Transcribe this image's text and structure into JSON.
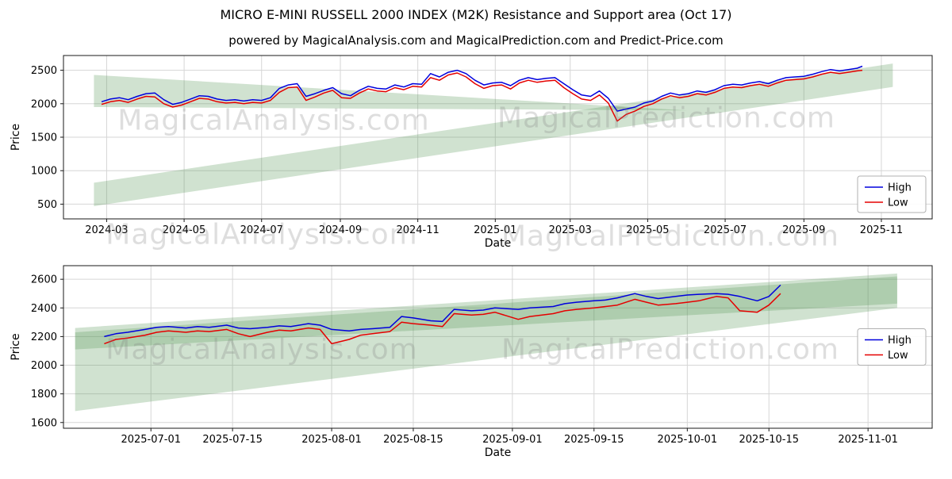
{
  "title": "MICRO E-MINI RUSSELL 2000 INDEX (M2K) Resistance and Support area (Oct 17)",
  "subtitle": "powered by MagicalAnalysis.com and MagicalPrediction.com and Predict-Price.com",
  "watermarks": [
    {
      "text": "MagicalAnalysis.com"
    },
    {
      "text": "MagicalPrediction.com"
    },
    {
      "text": "MagicalAnalysis.com"
    },
    {
      "text": "MagicalPrediction.com"
    },
    {
      "text": "MagicalAnalysis.com"
    },
    {
      "text": "MagicalPrediction.com"
    }
  ],
  "colors": {
    "high_line": "#0000dd",
    "low_line": "#e50000",
    "band_fill": "rgba(86,150,86,0.28)",
    "grid": "#d6d6d6",
    "spine": "#1a1a1a",
    "legend_border": "#b0b0b0"
  },
  "chart_data": [
    {
      "type": "line",
      "xlabel": "Date",
      "ylabel": "Price",
      "grid": true,
      "legend_loc": "lower-right",
      "xlim": [
        "2024-01-27",
        "2025-12-11"
      ],
      "ylim": [
        280,
        2720
      ],
      "yticks": [
        500,
        1000,
        1500,
        2000,
        2500
      ],
      "xticks": [
        {
          "d": "2024-03-01",
          "label": "2024-03"
        },
        {
          "d": "2024-05-01",
          "label": "2024-05"
        },
        {
          "d": "2024-07-01",
          "label": "2024-07"
        },
        {
          "d": "2024-09-01",
          "label": "2024-09"
        },
        {
          "d": "2024-11-01",
          "label": "2024-11"
        },
        {
          "d": "2025-01-01",
          "label": "2025-01"
        },
        {
          "d": "2025-03-01",
          "label": "2025-03"
        },
        {
          "d": "2025-05-01",
          "label": "2025-05"
        },
        {
          "d": "2025-07-01",
          "label": "2025-07"
        },
        {
          "d": "2025-09-01",
          "label": "2025-09"
        },
        {
          "d": "2025-11-01",
          "label": "2025-11"
        }
      ],
      "x": [
        "2024-02-26",
        "2024-03-04",
        "2024-03-11",
        "2024-03-18",
        "2024-03-25",
        "2024-04-01",
        "2024-04-08",
        "2024-04-15",
        "2024-04-22",
        "2024-04-29",
        "2024-05-06",
        "2024-05-13",
        "2024-05-20",
        "2024-05-27",
        "2024-06-03",
        "2024-06-10",
        "2024-06-17",
        "2024-06-24",
        "2024-07-01",
        "2024-07-08",
        "2024-07-15",
        "2024-07-22",
        "2024-07-29",
        "2024-08-05",
        "2024-08-12",
        "2024-08-19",
        "2024-08-26",
        "2024-09-02",
        "2024-09-09",
        "2024-09-16",
        "2024-09-23",
        "2024-09-30",
        "2024-10-07",
        "2024-10-14",
        "2024-10-21",
        "2024-10-28",
        "2024-11-04",
        "2024-11-11",
        "2024-11-18",
        "2024-11-25",
        "2024-12-02",
        "2024-12-09",
        "2024-12-16",
        "2024-12-23",
        "2024-12-30",
        "2025-01-06",
        "2025-01-13",
        "2025-01-20",
        "2025-01-27",
        "2025-02-03",
        "2025-02-10",
        "2025-02-17",
        "2025-02-24",
        "2025-03-03",
        "2025-03-10",
        "2025-03-17",
        "2025-03-24",
        "2025-03-31",
        "2025-04-07",
        "2025-04-14",
        "2025-04-21",
        "2025-04-28",
        "2025-05-05",
        "2025-05-12",
        "2025-05-19",
        "2025-05-26",
        "2025-06-02",
        "2025-06-09",
        "2025-06-16",
        "2025-06-23",
        "2025-06-30",
        "2025-07-07",
        "2025-07-14",
        "2025-07-21",
        "2025-07-28",
        "2025-08-04",
        "2025-08-11",
        "2025-08-18",
        "2025-08-25",
        "2025-09-01",
        "2025-09-08",
        "2025-09-15",
        "2025-09-22",
        "2025-09-29",
        "2025-10-06",
        "2025-10-13",
        "2025-10-17"
      ],
      "series": [
        {
          "name": "High",
          "color": "#0000dd",
          "values": [
            2030,
            2070,
            2090,
            2060,
            2110,
            2150,
            2160,
            2060,
            1990,
            2020,
            2070,
            2120,
            2110,
            2070,
            2050,
            2060,
            2040,
            2060,
            2050,
            2090,
            2230,
            2280,
            2300,
            2110,
            2150,
            2200,
            2240,
            2150,
            2120,
            2200,
            2260,
            2230,
            2220,
            2280,
            2250,
            2300,
            2290,
            2450,
            2400,
            2470,
            2500,
            2450,
            2350,
            2280,
            2310,
            2320,
            2270,
            2350,
            2390,
            2360,
            2380,
            2390,
            2300,
            2210,
            2130,
            2110,
            2190,
            2080,
            1890,
            1920,
            1950,
            2010,
            2040,
            2110,
            2160,
            2130,
            2150,
            2190,
            2170,
            2210,
            2270,
            2290,
            2280,
            2310,
            2330,
            2300,
            2350,
            2390,
            2400,
            2410,
            2440,
            2480,
            2510,
            2490,
            2510,
            2530,
            2560
          ]
        },
        {
          "name": "Low",
          "color": "#e50000",
          "values": [
            1990,
            2030,
            2050,
            2020,
            2070,
            2110,
            2100,
            2000,
            1950,
            1980,
            2030,
            2080,
            2070,
            2030,
            2010,
            2020,
            2000,
            2020,
            2010,
            2050,
            2170,
            2240,
            2250,
            2050,
            2100,
            2160,
            2200,
            2090,
            2080,
            2160,
            2220,
            2190,
            2180,
            2240,
            2210,
            2260,
            2250,
            2390,
            2350,
            2430,
            2460,
            2400,
            2300,
            2230,
            2270,
            2280,
            2220,
            2310,
            2350,
            2320,
            2340,
            2350,
            2240,
            2150,
            2070,
            2050,
            2130,
            2010,
            1740,
            1840,
            1890,
            1960,
            2000,
            2070,
            2120,
            2090,
            2110,
            2150,
            2130,
            2170,
            2230,
            2250,
            2240,
            2270,
            2290,
            2260,
            2310,
            2350,
            2360,
            2370,
            2400,
            2440,
            2470,
            2450,
            2470,
            2490,
            2500
          ]
        }
      ],
      "bands": [
        {
          "name": "support-rising-band",
          "x": [
            "2024-02-20",
            "2025-11-10"
          ],
          "bottom": [
            470,
            2250
          ],
          "top": [
            820,
            2600
          ]
        },
        {
          "name": "resistance-wedge",
          "x": [
            "2024-02-20",
            "2025-06-01"
          ],
          "bottom": [
            1950,
            1900
          ],
          "top": [
            2430,
            1900
          ]
        }
      ]
    },
    {
      "type": "line",
      "xlabel": "Date",
      "ylabel": "Price",
      "grid": true,
      "legend_loc": "center-right",
      "xlim": [
        "2025-06-16",
        "2025-11-12"
      ],
      "ylim": [
        1560,
        2695
      ],
      "yticks": [
        1600,
        1800,
        2000,
        2200,
        2400,
        2600
      ],
      "xticks": [
        {
          "d": "2025-07-01",
          "label": "2025-07-01"
        },
        {
          "d": "2025-07-15",
          "label": "2025-07-15"
        },
        {
          "d": "2025-08-01",
          "label": "2025-08-01"
        },
        {
          "d": "2025-08-15",
          "label": "2025-08-15"
        },
        {
          "d": "2025-09-01",
          "label": "2025-09-01"
        },
        {
          "d": "2025-09-15",
          "label": "2025-09-15"
        },
        {
          "d": "2025-10-01",
          "label": "2025-10-01"
        },
        {
          "d": "2025-10-15",
          "label": "2025-10-15"
        },
        {
          "d": "2025-11-01",
          "label": "2025-11-01"
        }
      ],
      "x": [
        "2025-06-23",
        "2025-06-25",
        "2025-06-27",
        "2025-06-30",
        "2025-07-02",
        "2025-07-04",
        "2025-07-07",
        "2025-07-09",
        "2025-07-11",
        "2025-07-14",
        "2025-07-16",
        "2025-07-18",
        "2025-07-21",
        "2025-07-23",
        "2025-07-25",
        "2025-07-28",
        "2025-07-30",
        "2025-08-01",
        "2025-08-04",
        "2025-08-06",
        "2025-08-08",
        "2025-08-11",
        "2025-08-13",
        "2025-08-15",
        "2025-08-18",
        "2025-08-20",
        "2025-08-22",
        "2025-08-25",
        "2025-08-27",
        "2025-08-29",
        "2025-09-02",
        "2025-09-04",
        "2025-09-08",
        "2025-09-10",
        "2025-09-12",
        "2025-09-15",
        "2025-09-17",
        "2025-09-19",
        "2025-09-22",
        "2025-09-24",
        "2025-09-26",
        "2025-09-29",
        "2025-10-01",
        "2025-10-03",
        "2025-10-06",
        "2025-10-08",
        "2025-10-10",
        "2025-10-13",
        "2025-10-15",
        "2025-10-17"
      ],
      "series": [
        {
          "name": "High",
          "color": "#0000dd",
          "values": [
            2200,
            2220,
            2230,
            2250,
            2265,
            2270,
            2260,
            2270,
            2265,
            2280,
            2260,
            2255,
            2265,
            2275,
            2270,
            2290,
            2280,
            2250,
            2240,
            2250,
            2255,
            2265,
            2340,
            2330,
            2310,
            2305,
            2390,
            2380,
            2385,
            2400,
            2390,
            2400,
            2410,
            2430,
            2440,
            2450,
            2455,
            2470,
            2500,
            2480,
            2465,
            2480,
            2490,
            2495,
            2500,
            2495,
            2480,
            2450,
            2480,
            2560
          ]
        },
        {
          "name": "Low",
          "color": "#e50000",
          "values": [
            2150,
            2180,
            2190,
            2210,
            2230,
            2240,
            2230,
            2240,
            2235,
            2250,
            2220,
            2200,
            2230,
            2245,
            2240,
            2260,
            2250,
            2150,
            2180,
            2210,
            2220,
            2235,
            2300,
            2290,
            2280,
            2270,
            2360,
            2350,
            2355,
            2370,
            2320,
            2340,
            2360,
            2380,
            2390,
            2400,
            2410,
            2420,
            2460,
            2440,
            2420,
            2430,
            2440,
            2450,
            2480,
            2470,
            2380,
            2370,
            2420,
            2500
          ]
        }
      ],
      "bands": [
        {
          "name": "support-wide-band",
          "x": [
            "2025-06-18",
            "2025-11-06"
          ],
          "bottom": [
            1680,
            2400
          ],
          "top": [
            2230,
            2620
          ]
        },
        {
          "name": "trend-band",
          "x": [
            "2025-06-18",
            "2025-11-06"
          ],
          "bottom": [
            2110,
            2430
          ],
          "top": [
            2260,
            2640
          ]
        }
      ]
    }
  ]
}
